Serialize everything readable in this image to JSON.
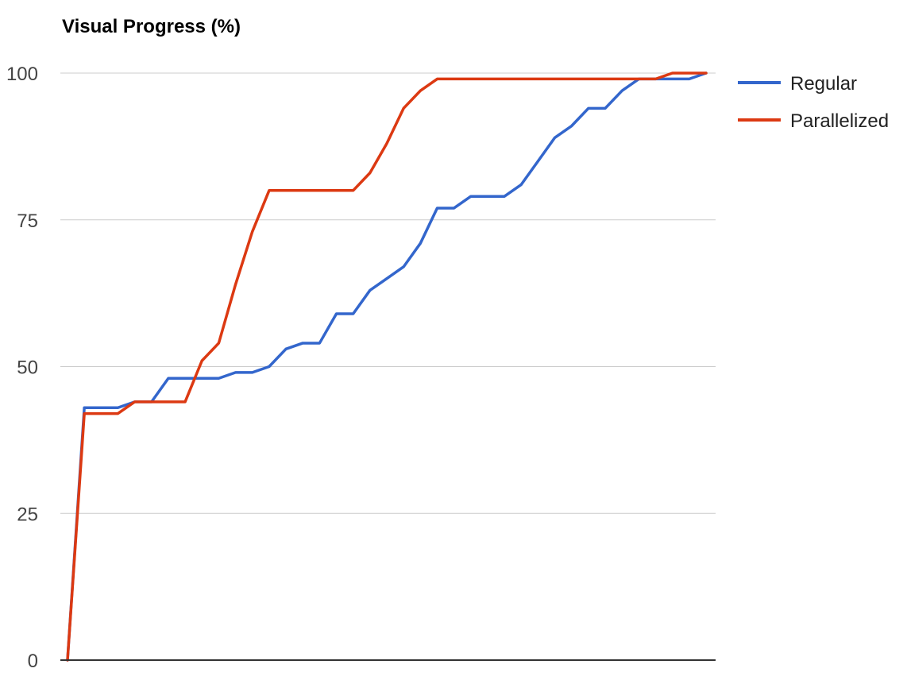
{
  "colors": {
    "regular": "#3366cc",
    "parallelized": "#dc3912",
    "grid": "#cccccc",
    "baseline": "#333333"
  },
  "chart_data": {
    "type": "line",
    "title": "Visual Progress (%)",
    "xlabel": "",
    "ylabel": "",
    "ylim": [
      0,
      100
    ],
    "y_ticks": [
      "0",
      "25",
      "50",
      "75",
      "100"
    ],
    "grid": true,
    "legend_position": "right",
    "series": [
      {
        "name": "Regular",
        "color": "#3366cc",
        "values": [
          0,
          43,
          43,
          43,
          44,
          44,
          48,
          48,
          48,
          48,
          49,
          49,
          50,
          53,
          54,
          54,
          59,
          59,
          63,
          65,
          67,
          71,
          77,
          77,
          79,
          79,
          79,
          81,
          85,
          89,
          91,
          94,
          94,
          97,
          99,
          99,
          99,
          99,
          100
        ]
      },
      {
        "name": "Parallelized",
        "color": "#dc3912",
        "values": [
          0,
          42,
          42,
          42,
          44,
          44,
          44,
          44,
          51,
          54,
          64,
          73,
          80,
          80,
          80,
          80,
          80,
          80,
          83,
          88,
          94,
          97,
          99,
          99,
          99,
          99,
          99,
          99,
          99,
          99,
          99,
          99,
          99,
          99,
          99,
          99,
          100,
          100,
          100
        ]
      }
    ]
  }
}
